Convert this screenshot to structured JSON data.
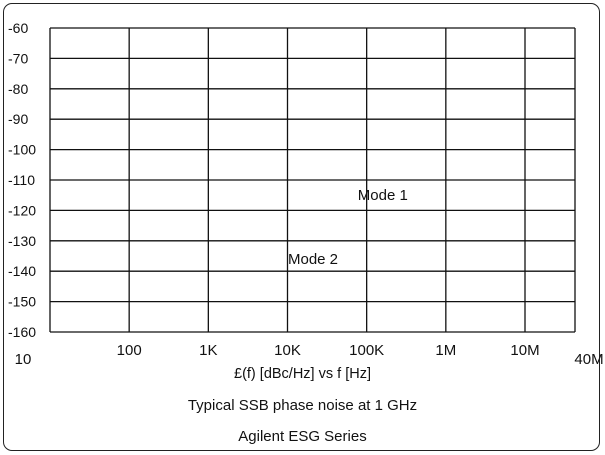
{
  "chart_data": {
    "type": "line",
    "title": "Typical SSB phase noise at 1 GHz",
    "subtitle": "Agilent ESG Series",
    "xlabel": "£(f) [dBc/Hz] vs f [Hz]",
    "ylabel": "",
    "x_scale": "log",
    "x_ticks": [
      10,
      100,
      1000,
      10000,
      100000,
      1000000,
      10000000,
      40000000
    ],
    "x_tick_labels": [
      "10",
      "100",
      "1K",
      "10K",
      "100K",
      "1M",
      "10M",
      "40M"
    ],
    "y_ticks": [
      -60,
      -70,
      -80,
      -90,
      -100,
      -110,
      -120,
      -130,
      -140,
      -150,
      -160
    ],
    "y_tick_labels": [
      "-60",
      "-70",
      "-80",
      "-90",
      "-100",
      "-110",
      "-120",
      "-130",
      "-140",
      "-150",
      "-160"
    ],
    "xlim": [
      10,
      40000000
    ],
    "ylim": [
      -160,
      -60
    ],
    "grid": true,
    "series": [],
    "annotations": [
      {
        "text": "Mode 1",
        "x": 160000,
        "y": -115
      },
      {
        "text": "Mode 2",
        "x": 21000,
        "y": -136
      }
    ]
  }
}
